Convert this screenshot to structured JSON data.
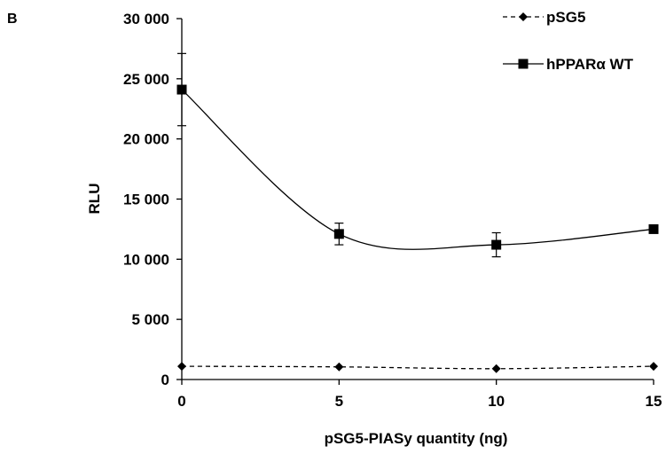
{
  "panel_label": "B",
  "chart_data": {
    "type": "line",
    "xlabel": "pSG5-PIASy quantity (ng)",
    "ylabel": "RLU",
    "xlim": [
      0,
      15
    ],
    "ylim": [
      0,
      30000
    ],
    "x_ticks": [
      0,
      5,
      10,
      15
    ],
    "x_tick_labels": [
      "0",
      "5",
      "10",
      "15"
    ],
    "y_ticks": [
      0,
      5000,
      10000,
      15000,
      20000,
      25000,
      30000
    ],
    "y_tick_labels": [
      "0",
      "5 000",
      "10 000",
      "15 000",
      "20 000",
      "25 000",
      "30 000"
    ],
    "grid": false,
    "legend_position": "top-right",
    "series": [
      {
        "name": "pSG5",
        "marker": "diamond",
        "line": "dashed",
        "color": "#000000",
        "x": [
          0,
          5,
          10,
          15
        ],
        "y": [
          1100,
          1050,
          900,
          1100
        ]
      },
      {
        "name": "hPPARα WT",
        "marker": "square",
        "line": "solid-smooth",
        "color": "#000000",
        "x": [
          0,
          5,
          10,
          15
        ],
        "y": [
          24100,
          12100,
          11200,
          12500
        ],
        "error": [
          3000,
          900,
          1000,
          0
        ]
      }
    ]
  }
}
